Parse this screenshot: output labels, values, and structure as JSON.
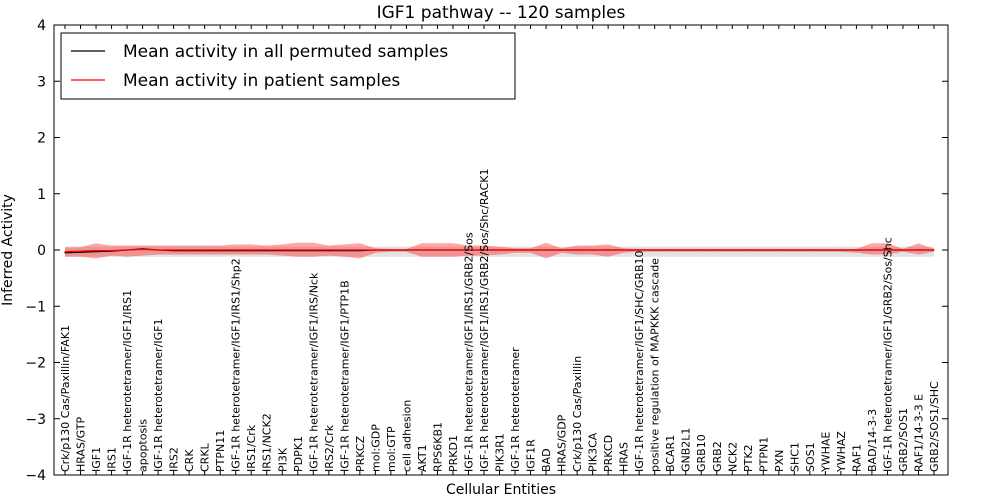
{
  "chart_data": {
    "type": "line",
    "title": "IGF1 pathway -- 120 samples",
    "xlabel": "Cellular Entities",
    "ylabel": "Inferred Activity",
    "ylim": [
      -4,
      4
    ],
    "yticks": [
      -4,
      -3,
      -2,
      -1,
      0,
      1,
      2,
      3,
      4
    ],
    "ytick_labels": [
      "−4",
      "−3",
      "−2",
      "−1",
      "0",
      "1",
      "2",
      "3",
      "4"
    ],
    "grid": false,
    "legend": {
      "position": "top-left",
      "entries": [
        {
          "label": "Mean activity in all permuted samples",
          "color": "#000000"
        },
        {
          "label": "Mean activity in patient samples",
          "color": "#ff0000"
        }
      ]
    },
    "categories": [
      "Crk/p130 Cas/Paxillin/FAK1",
      "HRAS/GTP",
      "IGF1",
      "IRS1",
      "IGF-1R heterotetramer/IGF1/IRS1",
      "apoptosis",
      "IGF-1R heterotetramer/IGF1",
      "IRS2",
      "CRK",
      "CRKL",
      "PTPN11",
      "IGF-1R heterotetramer/IGF1/IRS1/Shp2",
      "IRS1/Crk",
      "IRS1/NCK2",
      "PI3K",
      "PDPK1",
      "IGF-1R heterotetramer/IGF1/IRS/Nck",
      "IRS2/Crk",
      "IGF-1R heterotetramer/IGF1/PTP1B",
      "PRKCZ",
      "mol:GDP",
      "mol:GTP",
      "cell adhesion",
      "AKT1",
      "RPS6KB1",
      "PRKD1",
      "IGF-1R heterotetramer/IGF1/IRS1/GRB2/Sos",
      "IGF-1R heterotetramer/IGF1/IRS1/GRB2/Sos/Shc/RACK1",
      "PIK3R1",
      "IGF-1R heterotetramer",
      "IGF1R",
      "BAD",
      "HRAS/GDP",
      "Crk/p130 Cas/Paxillin",
      "PIK3CA",
      "PRKCD",
      "HRAS",
      "IGF-1R heterotetramer/IGF1/SHC/GRB10",
      "positive regulation of MAPKKK cascade",
      "BCAR1",
      "GNB2L1",
      "GRB10",
      "GRB2",
      "NCK2",
      "PTK2",
      "PTPN1",
      "PXN",
      "SHC1",
      "SOS1",
      "YWHAE",
      "YWHAZ",
      "RAF1",
      "BAD/14-3-3",
      "IGF-1R heterotetramer/IGF1/GRB2/Sos/Shc",
      "GRB2/SOS1",
      "RAF1/14-3-3 E",
      "GRB2/SOS1/SHC"
    ],
    "series": [
      {
        "name": "Mean activity in all permuted samples",
        "color": "#000000",
        "values": [
          -0.05,
          -0.04,
          -0.03,
          -0.02,
          0.0,
          0.02,
          0.0,
          -0.01,
          -0.01,
          -0.01,
          -0.01,
          -0.01,
          -0.01,
          -0.01,
          -0.01,
          -0.01,
          -0.01,
          -0.01,
          -0.01,
          -0.01,
          0.0,
          0.0,
          0.0,
          0.0,
          0.0,
          0.0,
          0.0,
          0.0,
          0.0,
          0.0,
          0.0,
          0.0,
          0.0,
          0.0,
          0.0,
          0.0,
          0.0,
          0.0,
          0.0,
          0.0,
          0.0,
          0.0,
          0.0,
          0.0,
          0.0,
          0.0,
          0.0,
          0.0,
          0.0,
          0.0,
          0.0,
          0.0,
          0.0,
          0.0,
          0.0,
          0.0,
          0.0
        ],
        "band_low": [
          -0.12,
          -0.12,
          -0.12,
          -0.12,
          -0.12,
          -0.12,
          -0.12,
          -0.12,
          -0.12,
          -0.12,
          -0.12,
          -0.12,
          -0.12,
          -0.12,
          -0.12,
          -0.12,
          -0.12,
          -0.12,
          -0.12,
          -0.12,
          -0.12,
          -0.12,
          -0.12,
          -0.12,
          -0.12,
          -0.12,
          -0.12,
          -0.12,
          -0.12,
          -0.12,
          -0.12,
          -0.12,
          -0.12,
          -0.12,
          -0.12,
          -0.12,
          -0.12,
          -0.12,
          -0.12,
          -0.12,
          -0.12,
          -0.12,
          -0.12,
          -0.12,
          -0.12,
          -0.12,
          -0.12,
          -0.12,
          -0.12,
          -0.12,
          -0.12,
          -0.12,
          -0.12,
          -0.12,
          -0.12,
          -0.12,
          -0.12
        ],
        "band_high": [
          0.06,
          0.06,
          0.06,
          0.06,
          0.06,
          0.06,
          0.06,
          0.06,
          0.06,
          0.06,
          0.06,
          0.06,
          0.06,
          0.06,
          0.06,
          0.06,
          0.06,
          0.06,
          0.06,
          0.06,
          0.06,
          0.06,
          0.06,
          0.06,
          0.06,
          0.06,
          0.06,
          0.06,
          0.06,
          0.06,
          0.06,
          0.06,
          0.06,
          0.06,
          0.06,
          0.06,
          0.06,
          0.06,
          0.06,
          0.06,
          0.06,
          0.06,
          0.06,
          0.06,
          0.06,
          0.06,
          0.06,
          0.06,
          0.06,
          0.06,
          0.06,
          0.06,
          0.06,
          0.06,
          0.06,
          0.06,
          0.06
        ]
      },
      {
        "name": "Mean activity in patient samples",
        "color": "#ff0000",
        "values": [
          -0.03,
          -0.02,
          -0.01,
          -0.01,
          0.0,
          0.01,
          0.0,
          0.0,
          0.0,
          0.0,
          0.0,
          0.0,
          0.0,
          0.0,
          0.0,
          0.0,
          0.0,
          0.0,
          0.0,
          0.0,
          0.0,
          0.0,
          0.0,
          0.0,
          0.0,
          0.0,
          0.0,
          0.0,
          0.0,
          0.0,
          0.0,
          0.0,
          0.0,
          0.0,
          0.0,
          0.0,
          0.0,
          0.0,
          0.0,
          0.0,
          0.0,
          0.0,
          0.0,
          0.0,
          0.0,
          0.0,
          0.0,
          0.0,
          0.0,
          0.0,
          0.0,
          0.0,
          0.0,
          0.0,
          0.0,
          0.0,
          0.0
        ],
        "band_low": [
          -0.12,
          -0.12,
          -0.15,
          -0.1,
          -0.12,
          -0.1,
          -0.08,
          -0.08,
          -0.08,
          -0.08,
          -0.08,
          -0.08,
          -0.08,
          -0.08,
          -0.1,
          -0.12,
          -0.12,
          -0.1,
          -0.12,
          -0.15,
          -0.05,
          -0.03,
          -0.03,
          -0.12,
          -0.12,
          -0.12,
          -0.1,
          -0.1,
          -0.08,
          -0.05,
          -0.05,
          -0.15,
          -0.05,
          -0.08,
          -0.08,
          -0.12,
          -0.05,
          -0.03,
          -0.03,
          -0.03,
          -0.03,
          -0.03,
          -0.03,
          -0.03,
          -0.03,
          -0.03,
          -0.03,
          -0.03,
          -0.03,
          -0.03,
          -0.03,
          -0.05,
          -0.08,
          -0.08,
          -0.03,
          -0.08,
          -0.03
        ],
        "band_high": [
          0.05,
          0.05,
          0.12,
          0.08,
          0.08,
          0.08,
          0.08,
          0.08,
          0.08,
          0.08,
          0.08,
          0.1,
          0.1,
          0.08,
          0.1,
          0.13,
          0.13,
          0.08,
          0.1,
          0.12,
          0.03,
          0.02,
          0.02,
          0.12,
          0.12,
          0.12,
          0.08,
          0.08,
          0.06,
          0.03,
          0.03,
          0.13,
          0.03,
          0.08,
          0.08,
          0.1,
          0.03,
          0.02,
          0.02,
          0.02,
          0.02,
          0.02,
          0.02,
          0.02,
          0.02,
          0.02,
          0.02,
          0.02,
          0.02,
          0.02,
          0.02,
          0.02,
          0.12,
          0.12,
          0.02,
          0.12,
          0.02
        ]
      }
    ]
  }
}
